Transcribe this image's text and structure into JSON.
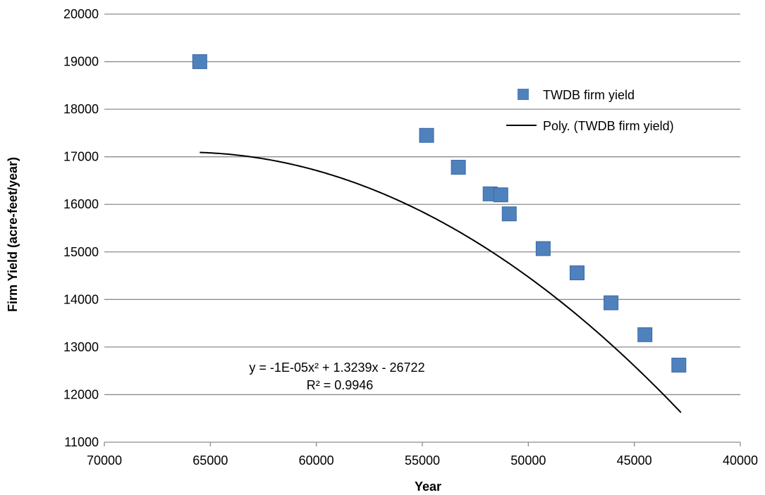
{
  "chart_data": {
    "type": "scatter",
    "title": "",
    "xlabel": "Year",
    "ylabel": "Firm Yield (acre-feet/year)",
    "x_reversed": true,
    "xlim": [
      40000,
      70000
    ],
    "ylim": [
      11000,
      20000
    ],
    "x_ticks": [
      70000,
      65000,
      60000,
      55000,
      50000,
      45000,
      40000
    ],
    "y_ticks": [
      11000,
      12000,
      13000,
      14000,
      15000,
      16000,
      17000,
      18000,
      19000,
      20000
    ],
    "grid": "horizontal",
    "legend_position": "right",
    "series": [
      {
        "name": "TWDB firm yield",
        "marker": "square",
        "color": "#4F81BD",
        "x": [
          65500,
          54800,
          53300,
          51800,
          51300,
          50900,
          49300,
          47700,
          46100,
          44500,
          42900
        ],
        "y": [
          19000,
          17450,
          16780,
          16220,
          16200,
          15800,
          15070,
          14560,
          13930,
          13260,
          12620
        ]
      }
    ],
    "trendline": {
      "name": "Poly. (TWDB firm yield)",
      "type": "polynomial",
      "color": "#000000",
      "x_range": [
        42800,
        65500
      ],
      "coefficients": [
        -1e-05,
        1.3239,
        -26722
      ],
      "equation": "y = -1E-05x² + 1.3239x - 26722",
      "r_squared": "R² = 0.9946"
    }
  }
}
